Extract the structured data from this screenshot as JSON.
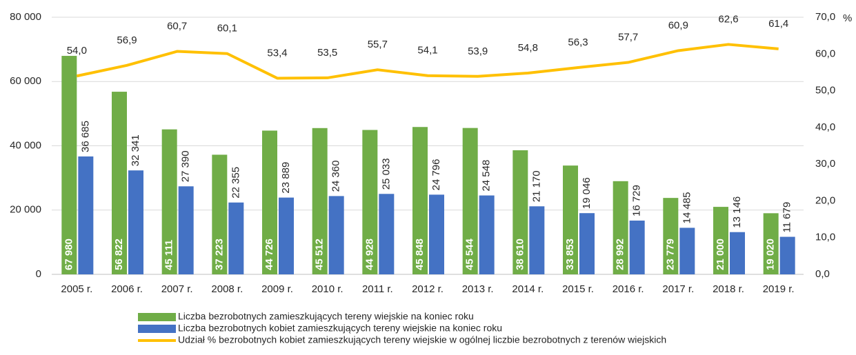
{
  "chart_data": {
    "type": "bar-line",
    "categories": [
      "2005 r.",
      "2006 r.",
      "2007 r.",
      "2008 r.",
      "2009 r.",
      "2010 r.",
      "2011 r.",
      "2012 r.",
      "2013 r.",
      "2014 r.",
      "2015 r.",
      "2016 r.",
      "2017 r.",
      "2018 r.",
      "2019 r."
    ],
    "series": [
      {
        "name": "Liczba bezrobotnych zamieszkujących tereny wiejskie na koniec roku",
        "type": "bar",
        "color": "#70ad47",
        "values": [
          67980,
          56822,
          45111,
          37223,
          44726,
          45512,
          44928,
          45848,
          45544,
          38610,
          33853,
          28992,
          23779,
          21000,
          19020
        ],
        "value_labels": [
          "67 980",
          "56 822",
          "45 111",
          "37 223",
          "44 726",
          "45 512",
          "44 928",
          "45 848",
          "45 544",
          "38 610",
          "33 853",
          "28 992",
          "23 779",
          "21 000",
          "19 020"
        ]
      },
      {
        "name": "Liczba bezrobotnych kobiet zamieszkujących tereny wiejskie na koniec roku",
        "type": "bar",
        "color": "#4472c4",
        "values": [
          36685,
          32341,
          27390,
          22355,
          23889,
          24360,
          25033,
          24796,
          24548,
          21170,
          19046,
          16729,
          14485,
          13146,
          11679
        ],
        "value_labels": [
          "36 685",
          "32 341",
          "27 390",
          "22 355",
          "23 889",
          "24 360",
          "25 033",
          "24 796",
          "24 548",
          "21 170",
          "19 046",
          "16 729",
          "14 485",
          "13 146",
          "11 679"
        ]
      },
      {
        "name": "Udział % bezrobotnych kobiet zamieszkujących tereny wiejskie w ogólnej liczbie bezrobotnych z terenów wiejskich",
        "type": "line",
        "axis": "y2",
        "color": "#ffc000",
        "values": [
          54.0,
          56.9,
          60.7,
          60.1,
          53.4,
          53.5,
          55.7,
          54.1,
          53.9,
          54.8,
          56.3,
          57.7,
          60.9,
          62.6,
          61.4
        ],
        "value_labels": [
          "54,0",
          "56,9",
          "60,7",
          "60,1",
          "53,4",
          "53,5",
          "55,7",
          "54,1",
          "53,9",
          "54,8",
          "56,3",
          "57,7",
          "60,9",
          "62,6",
          "61,4"
        ]
      }
    ],
    "ylim": [
      0,
      80000
    ],
    "yticks": [
      0,
      {
        "value": 20000,
        "label": "20 000"
      },
      {
        "value": 40000,
        "label": "40 000"
      },
      {
        "value": 60000,
        "label": "60 000"
      },
      {
        "value": 80000,
        "label": "80 000"
      }
    ],
    "y2lim": [
      0,
      70
    ],
    "y2ticks": [
      {
        "value": 0,
        "label": "0,0"
      },
      {
        "value": 10,
        "label": "10,0"
      },
      {
        "value": 20,
        "label": "20,0"
      },
      {
        "value": 30,
        "label": "30,0"
      },
      {
        "value": 40,
        "label": "40,0"
      },
      {
        "value": 50,
        "label": "50,0"
      },
      {
        "value": 60,
        "label": "60,0"
      },
      {
        "value": 70,
        "label": "70,0"
      }
    ],
    "y2label": "%",
    "grid": true
  }
}
